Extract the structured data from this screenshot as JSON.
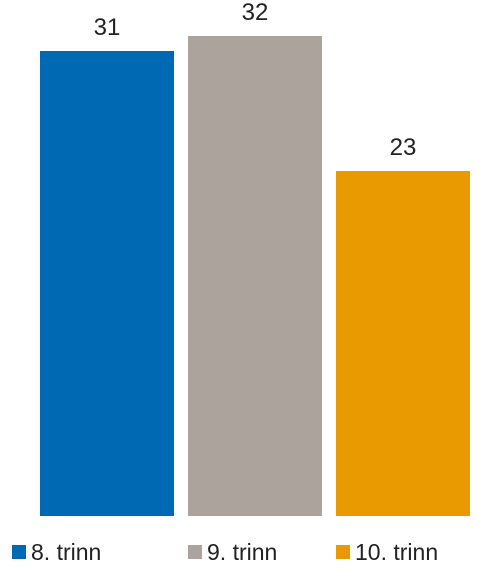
{
  "chart_data": {
    "type": "bar",
    "title": "",
    "xlabel": "",
    "ylabel": "",
    "ylim": [
      0,
      34.4
    ],
    "grid": false,
    "legend_position": "bottom",
    "series": [
      {
        "name": "8. trinn",
        "value": 31,
        "value_label": "31",
        "color": "#0069b4"
      },
      {
        "name": "9. trinn",
        "value": 32,
        "value_label": "32",
        "color": "#aca49c"
      },
      {
        "name": "10. trinn",
        "value": 23,
        "value_label": "23",
        "color": "#e89a00"
      }
    ]
  }
}
